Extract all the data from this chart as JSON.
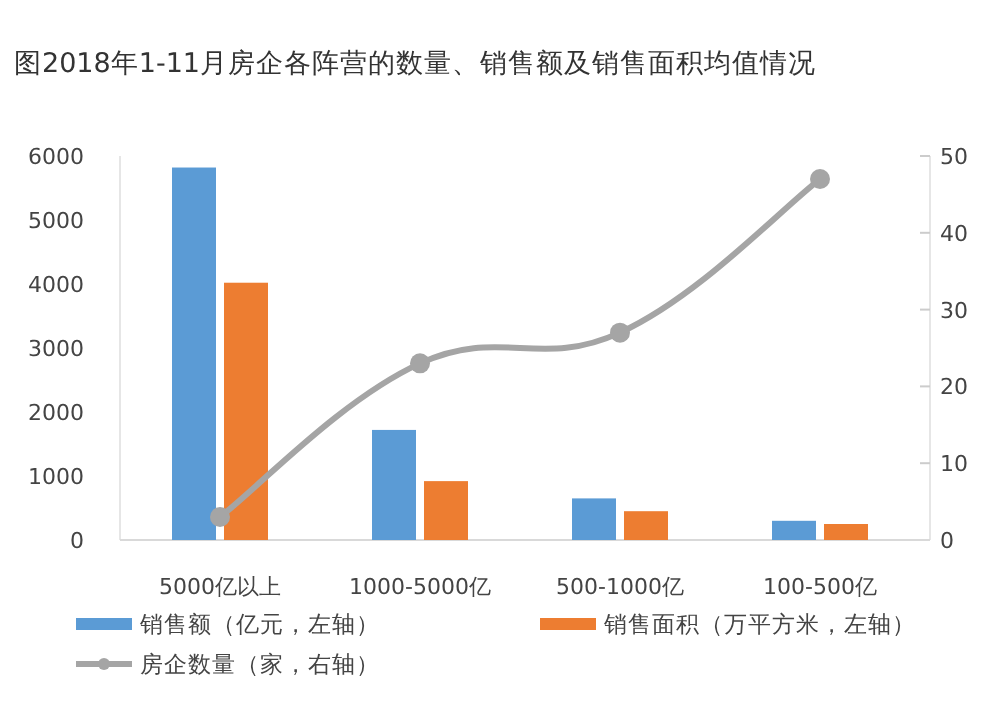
{
  "chart_data": {
    "type": "bar",
    "title": "图2018年1-11月房企各阵营的数量、销售额及销售面积均值情况",
    "categories": [
      "5000亿以上",
      "1000-5000亿",
      "500-1000亿",
      "100-500亿"
    ],
    "series": [
      {
        "name": "销售额（亿元，左轴）",
        "color": "#5b9bd5",
        "values": [
          5820,
          1720,
          650,
          300
        ]
      },
      {
        "name": "销售面积（万平方米，左轴）",
        "color": "#ed7d31",
        "values": [
          4020,
          920,
          450,
          250
        ]
      },
      {
        "name": "房企数量（家，右轴）",
        "color": "#a5a5a5",
        "type": "line",
        "axis": "y2",
        "marker": "circle",
        "values": [
          3,
          23,
          27,
          47
        ]
      }
    ],
    "ylim": [
      0,
      6000
    ],
    "yticks": [
      0,
      1000,
      2000,
      3000,
      4000,
      5000,
      6000
    ],
    "y2lim": [
      0,
      50
    ],
    "y2ticks": [
      0,
      10,
      20,
      30,
      40,
      50
    ],
    "legend": "bottom"
  }
}
